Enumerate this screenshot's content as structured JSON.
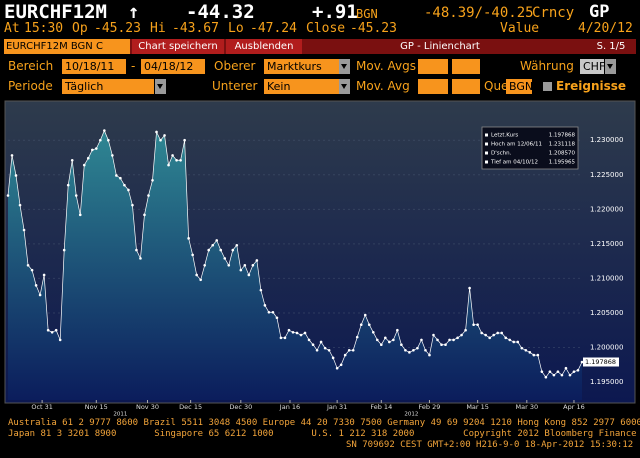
{
  "header": {
    "ticker": "EURCHF12M",
    "direction": "↑",
    "change": "-44.32",
    "net_change": "+.91",
    "source": "BGN",
    "range": "-48.39/-40.25",
    "market": "Crncy",
    "function": "GP"
  },
  "quote": {
    "time_label": "At",
    "time": "15:30",
    "open_label": "Op",
    "open": "-45.23",
    "high_label": "Hi",
    "high": "-43.67",
    "low_label": "Lo",
    "low": "-47.24",
    "close_label": "Close",
    "close": "-45.23",
    "value_label": "Value",
    "value_date": "4/20/12"
  },
  "tabs": [
    "EURCHF12M BGN C",
    "Chart speichern",
    "Ausblenden",
    "GP - Linienchart",
    "S. 1/5"
  ],
  "form": {
    "range_label": "Bereich",
    "start": "10/18/11",
    "dash": "-",
    "end": "04/18/12",
    "upper_label": "Oberer",
    "upper": "Marktkurs",
    "mov_avgs_label": "Mov. Avgs",
    "currency_label": "Währung",
    "currency": "CHF",
    "period_label": "Periode",
    "period": "Täglich",
    "lower_label": "Unterer",
    "lower": "Kein",
    "mov_avg_label": "Mov. Avg",
    "source_label": "Quelle",
    "source": "BGN",
    "events_label": "Ereignisse"
  },
  "chart_data": {
    "type": "area",
    "color": "#ffffff",
    "fill_top": "#2f8793",
    "fill_bottom": "#0b1d5c",
    "values": [
      1.222,
      1.2278,
      1.2249,
      1.2206,
      1.217,
      1.2119,
      1.2112,
      1.209,
      1.2076,
      1.2105,
      1.2025,
      1.2022,
      1.2025,
      1.2011,
      1.2141,
      1.2235,
      1.2271,
      1.222,
      1.2192,
      1.2264,
      1.2274,
      1.2286,
      1.2288,
      1.23,
      1.2314,
      1.23,
      1.2278,
      1.2249,
      1.2245,
      1.2235,
      1.2228,
      1.2206,
      1.2141,
      1.2129,
      1.2192,
      1.222,
      1.2242,
      1.2312,
      1.23,
      1.2307,
      1.2264,
      1.2278,
      1.2271,
      1.2271,
      1.23,
      1.2158,
      1.2134,
      1.2105,
      1.2098,
      1.2119,
      1.2141,
      1.2148,
      1.2155,
      1.2141,
      1.2129,
      1.2119,
      1.2141,
      1.2148,
      1.2112,
      1.2119,
      1.2105,
      1.2119,
      1.2126,
      1.2083,
      1.2061,
      1.2051,
      1.2051,
      1.2043,
      1.2014,
      1.2014,
      1.2025,
      1.2022,
      1.2021,
      1.2018,
      1.2021,
      1.2011,
      1.2004,
      1.1996,
      1.2008,
      1.1999,
      1.1996,
      1.1985,
      1.197,
      1.1975,
      1.1989,
      1.1996,
      1.1996,
      1.2015,
      1.2033,
      1.2047,
      1.2033,
      1.2022,
      1.2011,
      1.2004,
      1.2014,
      1.2008,
      1.2011,
      1.2025,
      1.2004,
      1.1996,
      1.1993,
      1.1996,
      1.1999,
      1.2011,
      1.1996,
      1.1989,
      1.2018,
      1.2011,
      1.2004,
      1.2004,
      1.2011,
      1.2011,
      1.2014,
      1.2018,
      1.2025,
      1.2086,
      1.2033,
      1.2033,
      1.2021,
      1.2018,
      1.2014,
      1.2018,
      1.2021,
      1.2021,
      1.2014,
      1.2011,
      1.2008,
      1.2008,
      1.1999,
      1.1996,
      1.1993,
      1.1989,
      1.1989,
      1.1965,
      1.1957,
      1.1965,
      1.196,
      1.1965,
      1.196,
      1.197,
      1.196,
      1.1965,
      1.1967,
      1.1979
    ],
    "xlim": [
      0,
      143
    ],
    "xticks": [
      {
        "value": 8.5,
        "label": "Oct 31"
      },
      {
        "value": 22,
        "label": "Nov 15"
      },
      {
        "value": 34.75,
        "label": "Nov 30"
      },
      {
        "value": 45.5,
        "label": "Dec 15"
      },
      {
        "value": 58,
        "label": "Dec 30"
      },
      {
        "value": 70.25,
        "label": "Jan 16"
      },
      {
        "value": 82,
        "label": "Jan 31"
      },
      {
        "value": 93,
        "label": "Feb 14"
      },
      {
        "value": 105,
        "label": "Feb 29"
      },
      {
        "value": 117,
        "label": "Mar 15"
      },
      {
        "value": 129.25,
        "label": "Mar 30"
      },
      {
        "value": 141,
        "label": "Apr 16"
      }
    ],
    "year_ticks": [
      {
        "value": 28,
        "label": "2011"
      },
      {
        "value": 100.5,
        "label": "2012"
      }
    ],
    "ylim": [
      1.1924,
      1.2351
    ],
    "yticks": [
      {
        "value": 1.195,
        "label": "1.195000"
      },
      {
        "value": 1.2,
        "label": "1.200000"
      },
      {
        "value": 1.205,
        "label": "1.205000"
      },
      {
        "value": 1.21,
        "label": "1.210000"
      },
      {
        "value": 1.215,
        "label": "1.215000"
      },
      {
        "value": 1.22,
        "label": "1.220000"
      },
      {
        "value": 1.225,
        "label": "1.225000"
      },
      {
        "value": 1.23,
        "label": "1.230000"
      }
    ],
    "grid": true,
    "legend": [
      {
        "label": "Letzt.Kurs",
        "value": "1.197868"
      },
      {
        "label": "Hoch am 12/06/11",
        "value": "1.231118"
      },
      {
        "label": "D'schn.",
        "value": "1.208570"
      },
      {
        "label": "Tief am 04/10/12",
        "value": "1.195965"
      }
    ]
  },
  "footer": [
    "Australia 61 2 9777 8600 Brazil 5511 3048 4500 Europe 44 20 7330 7500 Germany 49 69 9204 1210 Hong Kong 852 2977 6000",
    "Japan 81 3 3201 8900       Singapore 65 6212 1000       U.S. 1 212 318 2000         Copyright 2012 Bloomberg Finance L.P.",
    "SN 709692 CEST GMT+2:00 H216-9-0 18-Apr-2012 15:30:12"
  ]
}
